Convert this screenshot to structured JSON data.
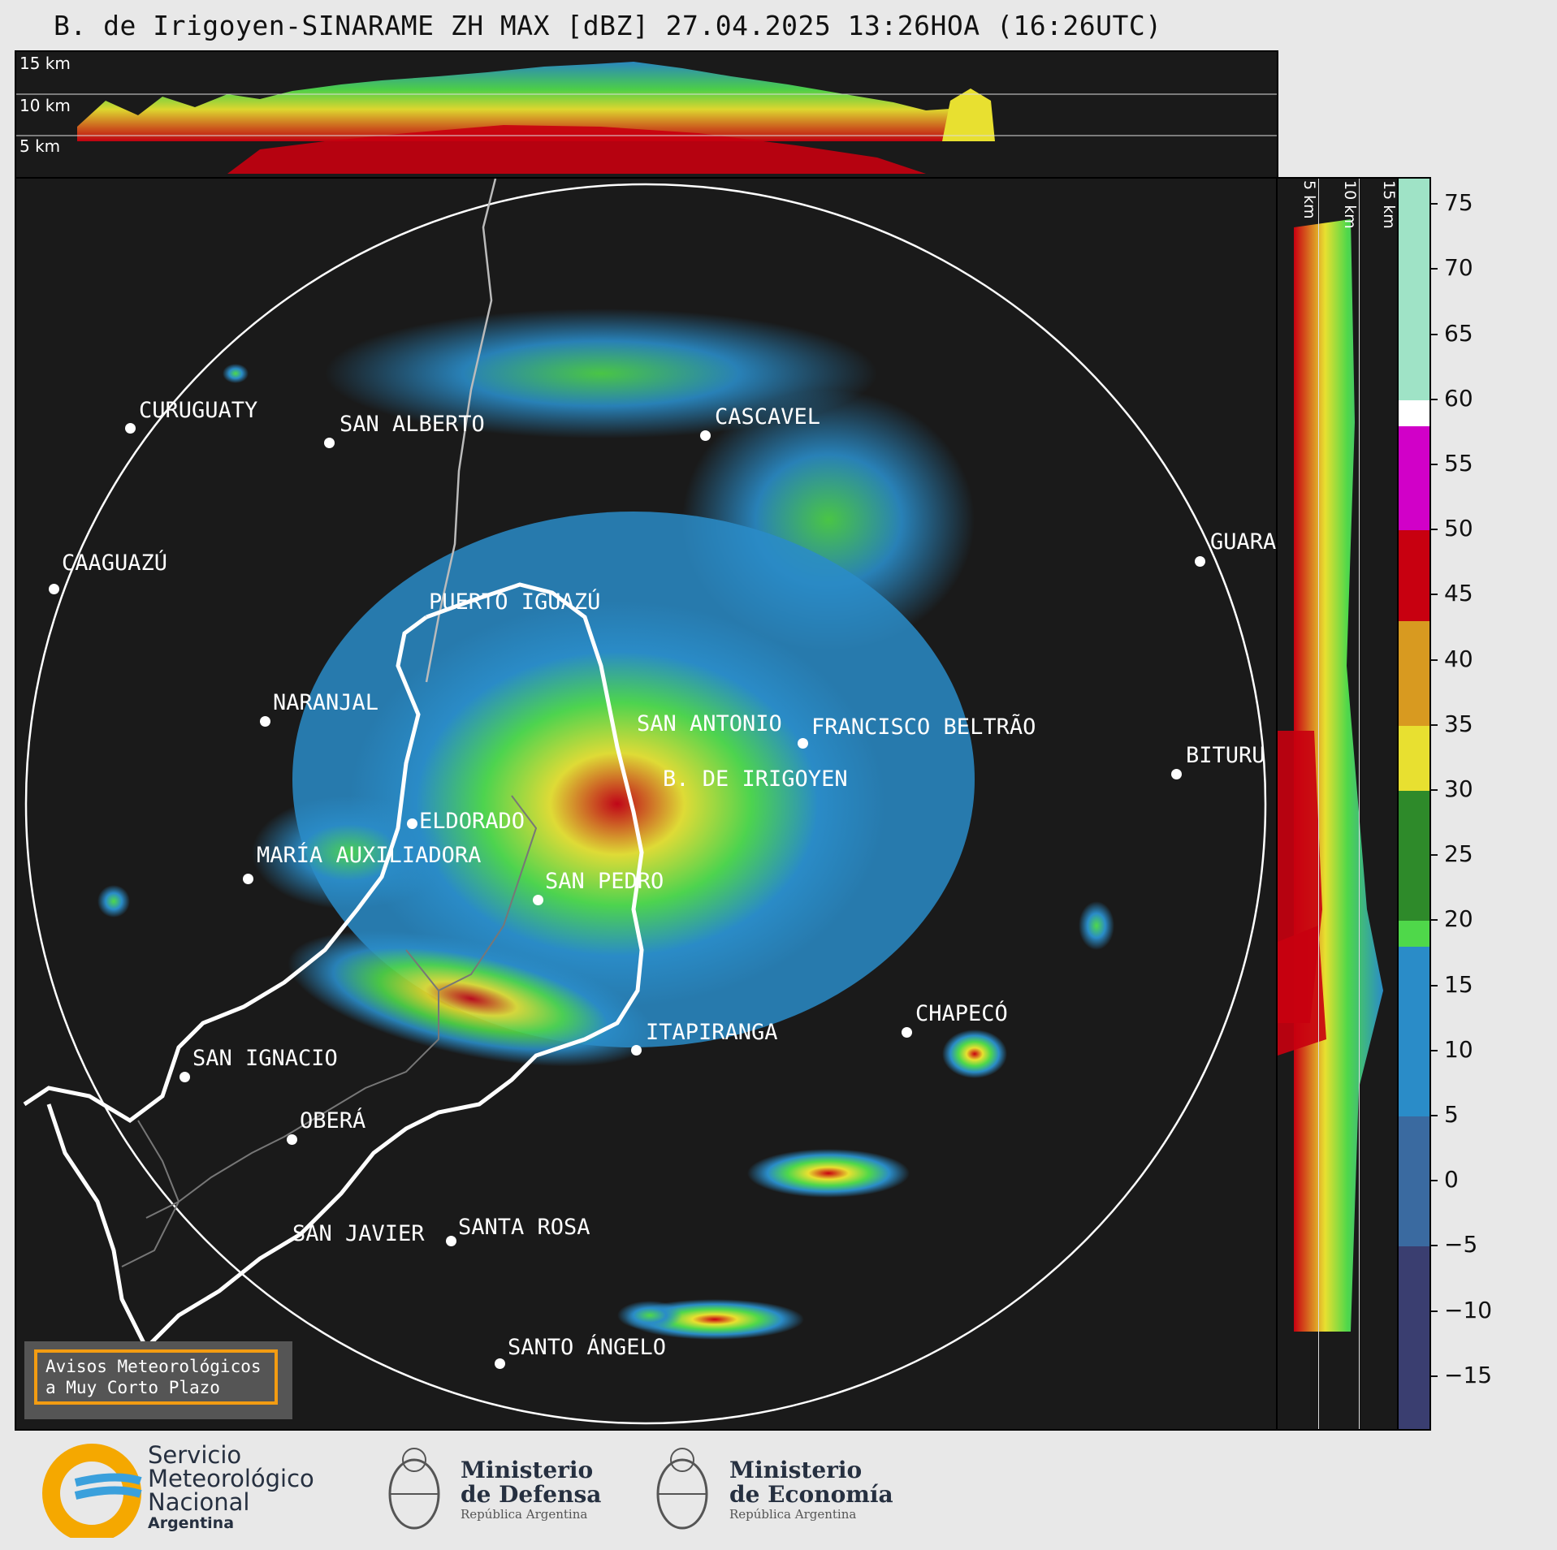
{
  "title": "B. de Irigoyen-SINARAME ZH MAX [dBZ] 27.04.2025 13:26HOA (16:26UTC)",
  "top_panel": {
    "height_labels": [
      "15 km",
      "10 km",
      "5 km"
    ]
  },
  "side_panel": {
    "height_labels": [
      "5 km",
      "10 km",
      "15 km"
    ]
  },
  "cities": [
    {
      "name": "CURUGUATY"
    },
    {
      "name": "SAN ALBERTO"
    },
    {
      "name": "CASCAVEL"
    },
    {
      "name": "CAAGUAZÚ"
    },
    {
      "name": "GUARA"
    },
    {
      "name": "PUERTO IGUAZÚ"
    },
    {
      "name": "NARANJAL"
    },
    {
      "name": "SAN ANTONIO"
    },
    {
      "name": "FRANCISCO BELTRÃO"
    },
    {
      "name": "BITURU"
    },
    {
      "name": "B. DE IRIGOYEN"
    },
    {
      "name": "ELDORADO"
    },
    {
      "name": "MARÍA AUXILIADORA"
    },
    {
      "name": "SAN PEDRO"
    },
    {
      "name": "CHAPECÓ"
    },
    {
      "name": "ITAPIRANGA"
    },
    {
      "name": "SAN IGNACIO"
    },
    {
      "name": "OBERÁ"
    },
    {
      "name": "SAN JAVIER"
    },
    {
      "name": "SANTA ROSA"
    },
    {
      "name": "SANTO ÁNGELO"
    }
  ],
  "colorbar": {
    "unit": "dBZ",
    "ticks": [
      "75",
      "70",
      "65",
      "60",
      "55",
      "50",
      "45",
      "40",
      "35",
      "30",
      "25",
      "20",
      "15",
      "10",
      "5",
      "0",
      "−5",
      "−10",
      "−15"
    ],
    "bands": [
      {
        "from": 60,
        "to": 77,
        "color": "#9fe3c6"
      },
      {
        "from": 58,
        "to": 60,
        "color": "#ffffff"
      },
      {
        "from": 50,
        "to": 58,
        "color": "#d100c8"
      },
      {
        "from": 43,
        "to": 50,
        "color": "#c80010"
      },
      {
        "from": 35,
        "to": 43,
        "color": "#d89a20"
      },
      {
        "from": 30,
        "to": 35,
        "color": "#e8e030"
      },
      {
        "from": 20,
        "to": 30,
        "color": "#2e8a2a"
      },
      {
        "from": 18,
        "to": 20,
        "color": "#4fd84a"
      },
      {
        "from": 5,
        "to": 18,
        "color": "#2a8cc8"
      },
      {
        "from": -5,
        "to": 5,
        "color": "#3a6aa0"
      },
      {
        "from": -19,
        "to": -5,
        "color": "#3a3e70"
      }
    ]
  },
  "warning_box": {
    "line1": "Avisos Meteorológicos",
    "line2": "a Muy Corto Plazo"
  },
  "footer": {
    "smn": {
      "line1": "Servicio",
      "line2": "Meteorológico",
      "line3": "Nacional",
      "line4": "Argentina"
    },
    "defensa": {
      "line1": "Ministerio",
      "line2": "de Defensa",
      "line3": "República Argentina"
    },
    "economia": {
      "line1": "Ministerio",
      "line2": "de Economía",
      "line3": "República Argentina"
    }
  },
  "colors": {
    "background": "#1a1a1a",
    "accent_border": "#f39c12",
    "ring": "#ffffff"
  }
}
